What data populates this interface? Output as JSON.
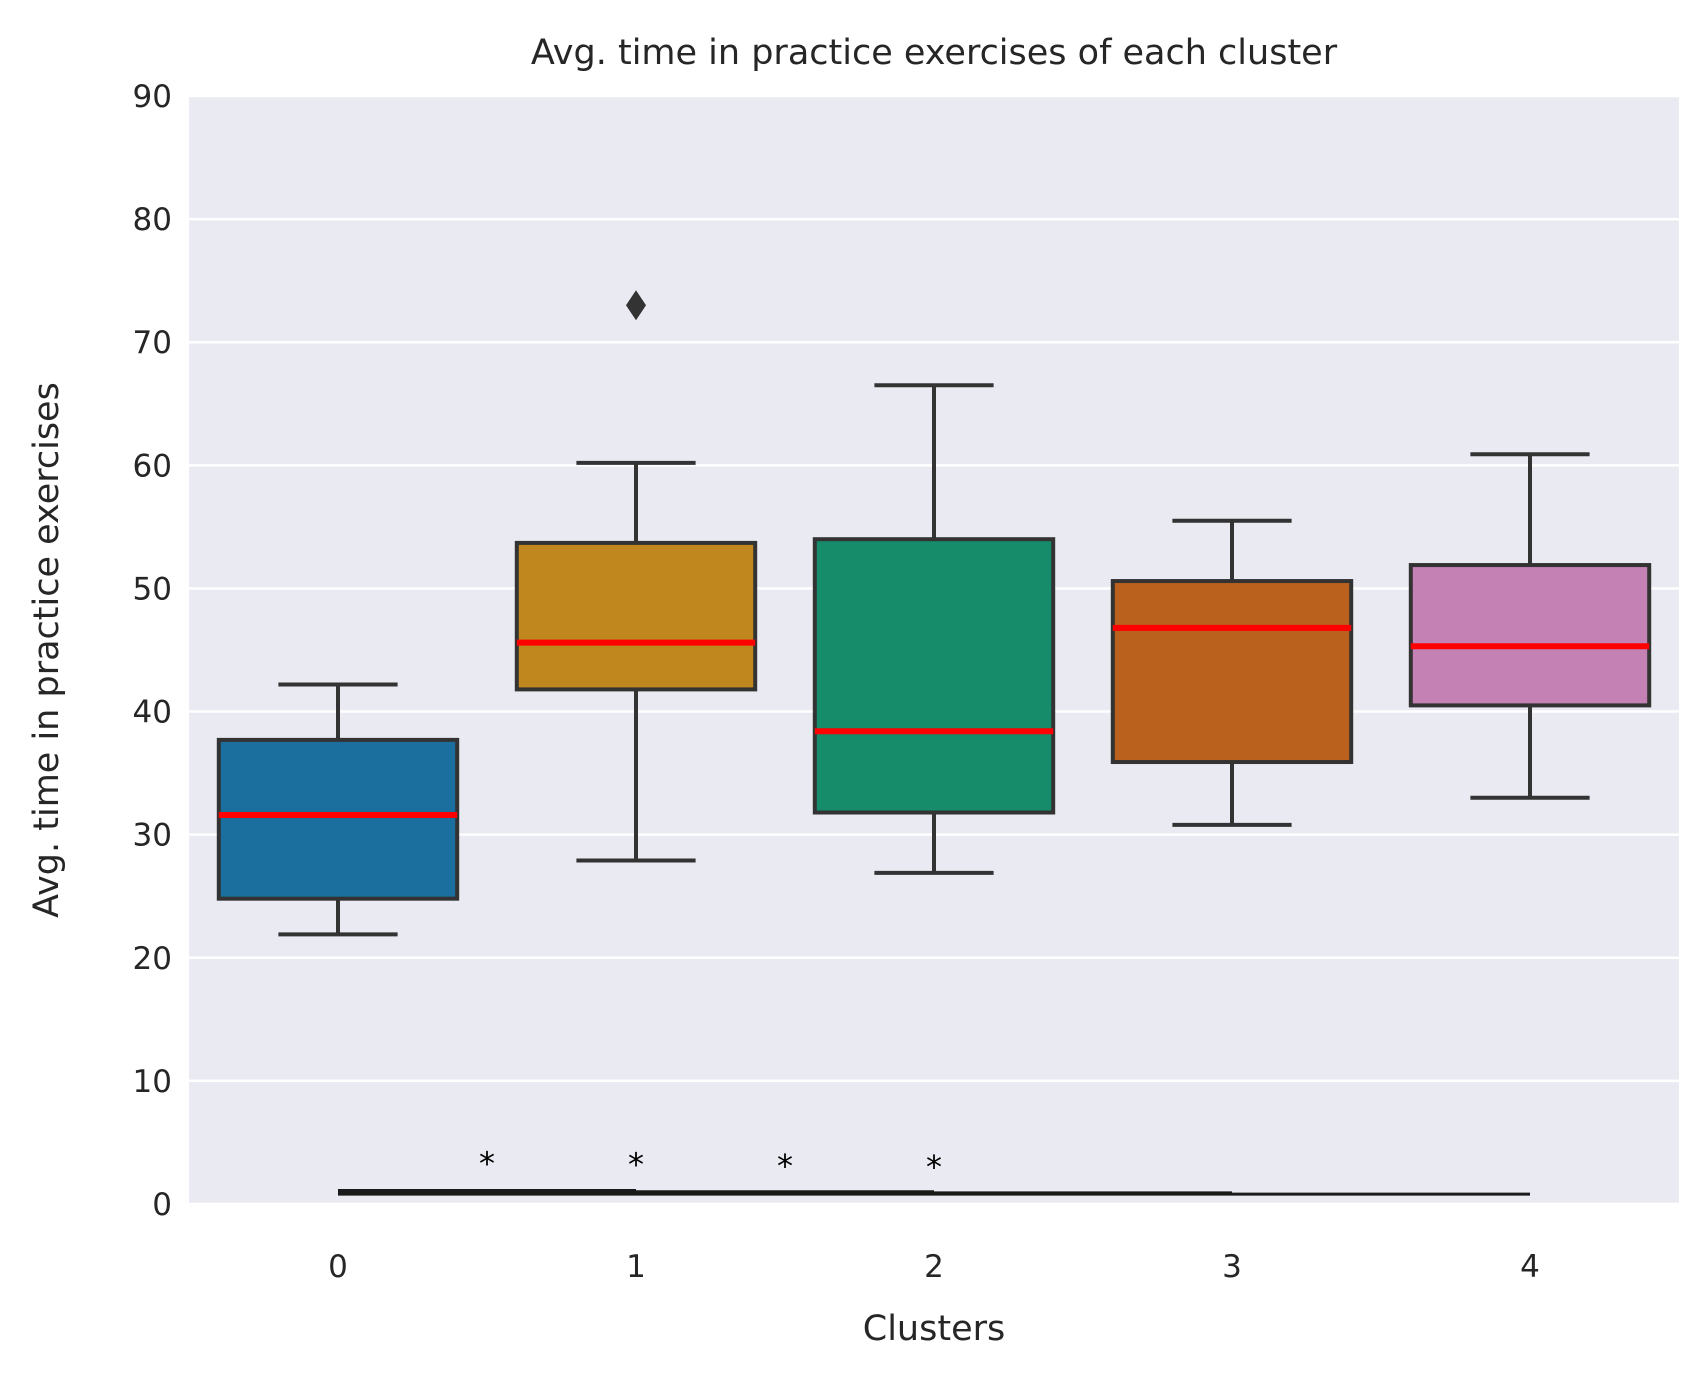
{
  "chart_data": {
    "type": "box",
    "title": "Avg. time in practice exercises of each cluster",
    "xlabel": "Clusters",
    "ylabel": "Avg. time in practice exercises",
    "ylim": [
      0,
      90
    ],
    "yticks": [
      "0",
      "10",
      "20",
      "30",
      "40",
      "50",
      "60",
      "70",
      "80",
      "90"
    ],
    "categories": [
      "0",
      "1",
      "2",
      "3",
      "4"
    ],
    "grid": "horizontal",
    "background": "#eaeaf2",
    "median_color": "#ff0000",
    "boxes": [
      {
        "category": "0",
        "whisker_low": 21.9,
        "q1": 24.8,
        "median": 31.6,
        "q3": 37.7,
        "whisker_high": 42.2,
        "outliers": [],
        "color": "#1a6f9f"
      },
      {
        "category": "1",
        "whisker_low": 27.9,
        "q1": 41.8,
        "median": 45.6,
        "q3": 53.7,
        "whisker_high": 60.2,
        "outliers": [
          73.0
        ],
        "color": "#c1871f"
      },
      {
        "category": "2",
        "whisker_low": 26.9,
        "q1": 31.8,
        "median": 38.4,
        "q3": 54.0,
        "whisker_high": 66.5,
        "outliers": [],
        "color": "#168c6b"
      },
      {
        "category": "3",
        "whisker_low": 30.8,
        "q1": 35.9,
        "median": 46.8,
        "q3": 50.6,
        "whisker_high": 55.5,
        "outliers": [],
        "color": "#ba611d"
      },
      {
        "category": "4",
        "whisker_low": 33.0,
        "q1": 40.5,
        "median": 45.3,
        "q3": 51.9,
        "whisker_high": 60.9,
        "outliers": [],
        "color": "#c381b4"
      }
    ],
    "significance_bars": [
      {
        "from": "0",
        "to": "1",
        "y": 1.1,
        "label": "*"
      },
      {
        "from": "0",
        "to": "2",
        "y": 1.0,
        "label": "*"
      },
      {
        "from": "0",
        "to": "3",
        "y": 0.9,
        "label": "*"
      },
      {
        "from": "0",
        "to": "4",
        "y": 0.8,
        "label": "*"
      }
    ]
  }
}
